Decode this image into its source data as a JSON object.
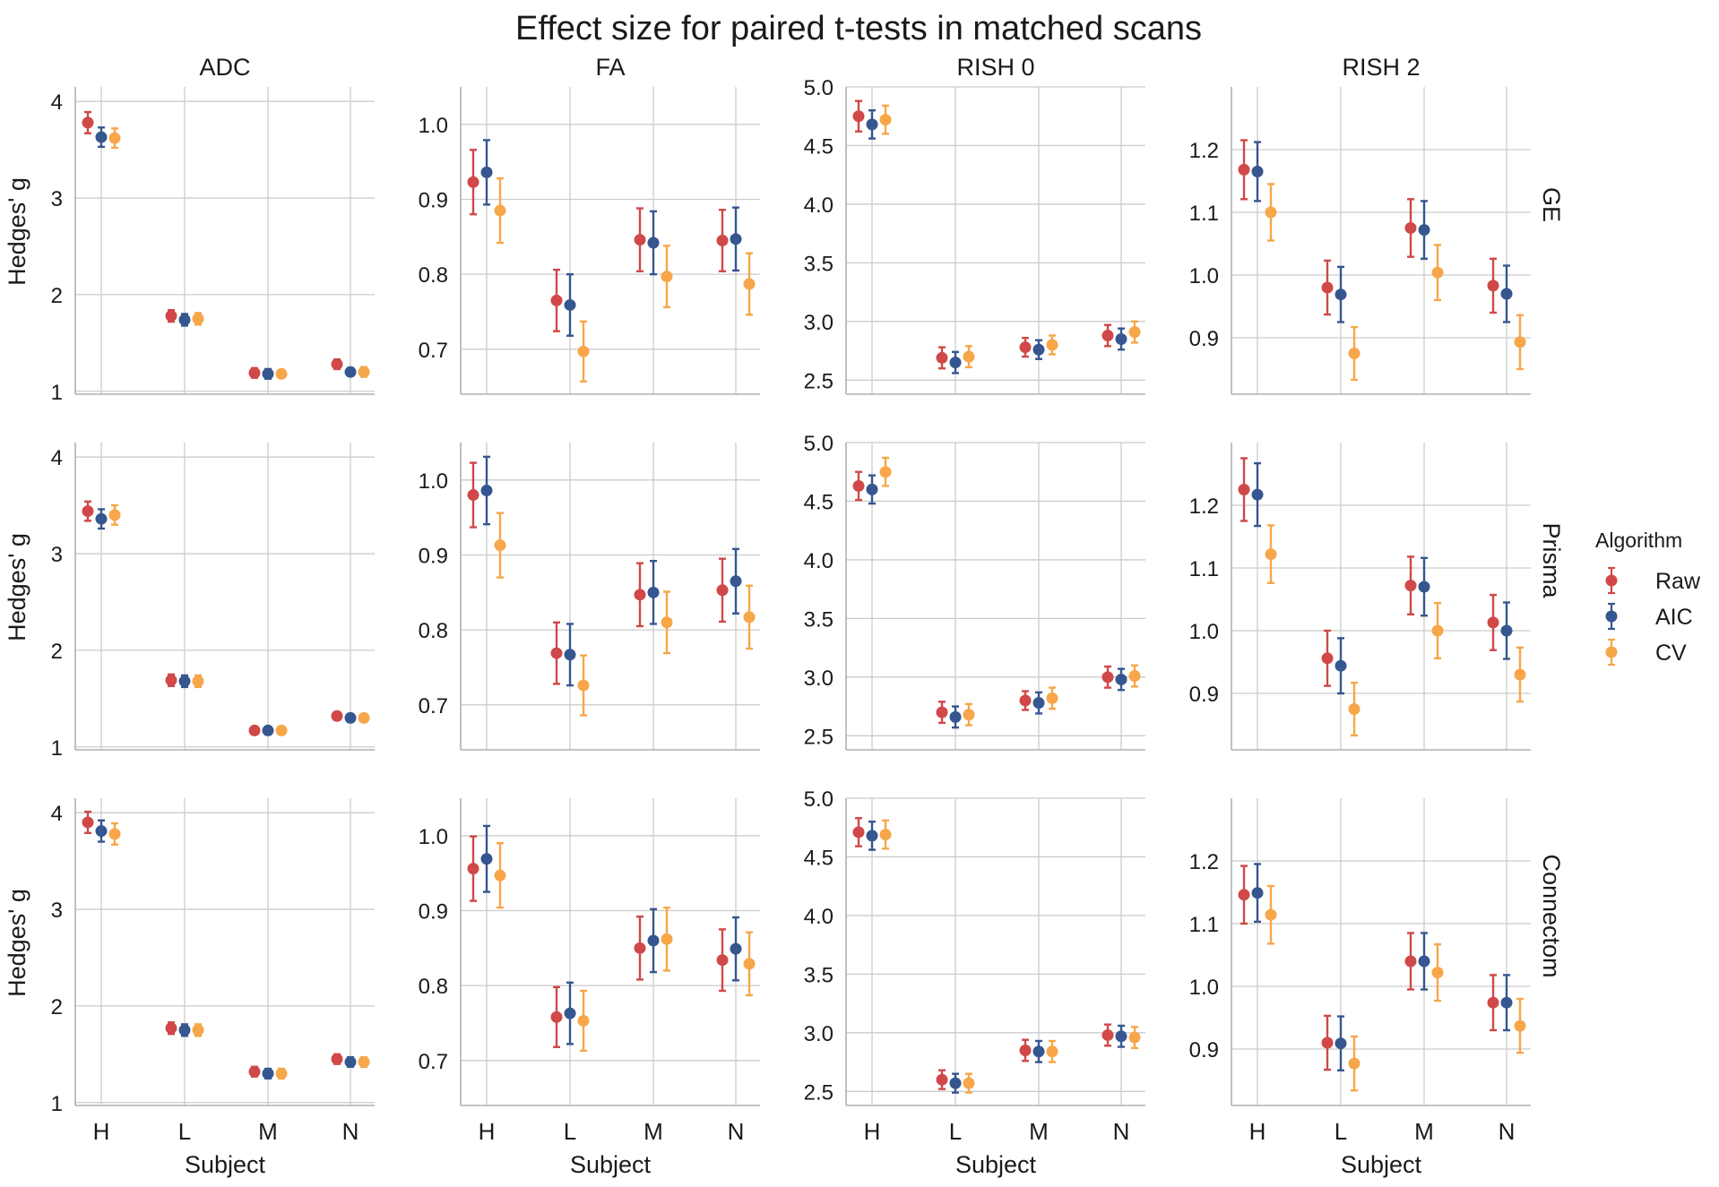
{
  "chart_data": {
    "type": "scatter",
    "variant": "point-estimate-with-error-bars (faceted grid)",
    "title": "Effect size for paired t-tests in matched scans",
    "col_facets": [
      "ADC",
      "FA",
      "RISH 0",
      "RISH 2"
    ],
    "row_facets": [
      "GE",
      "Prisma",
      "Connectom"
    ],
    "categories": [
      "H",
      "L",
      "M",
      "N"
    ],
    "xlabel": "Subject",
    "ylabel": "Hedges' g",
    "legend": {
      "title": "Algorithm",
      "position": "right",
      "entries": [
        {
          "name": "Raw",
          "color": "#d04848"
        },
        {
          "name": "AIC",
          "color": "#35568f"
        },
        {
          "name": "CV",
          "color": "#f7a649"
        }
      ]
    },
    "grid": true,
    "columns": [
      {
        "name": "ADC",
        "ylim": [
          0.97,
          4.15
        ],
        "ticks": [
          1,
          2,
          3,
          4
        ],
        "tick_labels": [
          "1",
          "2",
          "3",
          "4"
        ]
      },
      {
        "name": "FA",
        "ylim": [
          0.64,
          1.05
        ],
        "ticks": [
          0.7,
          0.8,
          0.9,
          1.0
        ],
        "tick_labels": [
          "0.7",
          "0.8",
          "0.9",
          "1.0"
        ]
      },
      {
        "name": "RISH 0",
        "ylim": [
          2.38,
          5.0
        ],
        "ticks": [
          2.5,
          3.0,
          3.5,
          4.0,
          4.5,
          5.0
        ],
        "tick_labels": [
          "2.5",
          "3.0",
          "3.5",
          "4.0",
          "4.5",
          "5.0"
        ]
      },
      {
        "name": "RISH 2",
        "ylim": [
          0.81,
          1.3
        ],
        "ticks": [
          0.9,
          1.0,
          1.1,
          1.2
        ],
        "tick_labels": [
          "0.9",
          "1.0",
          "1.1",
          "1.2"
        ]
      }
    ],
    "panels": [
      {
        "row": "GE",
        "col": "ADC",
        "series": [
          {
            "name": "Raw",
            "values": [
              3.78,
              1.78,
              1.19,
              1.28
            ],
            "err": [
              0.11,
              0.06,
              0.05,
              0.05
            ]
          },
          {
            "name": "AIC",
            "values": [
              3.63,
              1.74,
              1.18,
              1.2
            ],
            "err": [
              0.1,
              0.06,
              0.05,
              0.04
            ]
          },
          {
            "name": "CV",
            "values": [
              3.62,
              1.75,
              1.18,
              1.2
            ],
            "err": [
              0.1,
              0.06,
              0.04,
              0.05
            ]
          }
        ]
      },
      {
        "row": "GE",
        "col": "FA",
        "series": [
          {
            "name": "Raw",
            "values": [
              0.923,
              0.765,
              0.846,
              0.845
            ],
            "err": [
              0.043,
              0.041,
              0.042,
              0.041
            ]
          },
          {
            "name": "AIC",
            "values": [
              0.936,
              0.759,
              0.842,
              0.847
            ],
            "err": [
              0.043,
              0.041,
              0.042,
              0.042
            ]
          },
          {
            "name": "CV",
            "values": [
              0.885,
              0.697,
              0.797,
              0.787
            ],
            "err": [
              0.043,
              0.04,
              0.041,
              0.041
            ]
          }
        ]
      },
      {
        "row": "GE",
        "col": "RISH 0",
        "series": [
          {
            "name": "Raw",
            "values": [
              4.75,
              2.69,
              2.78,
              2.88
            ],
            "err": [
              0.13,
              0.09,
              0.08,
              0.09
            ]
          },
          {
            "name": "AIC",
            "values": [
              4.68,
              2.65,
              2.76,
              2.85
            ],
            "err": [
              0.12,
              0.09,
              0.08,
              0.09
            ]
          },
          {
            "name": "CV",
            "values": [
              4.72,
              2.7,
              2.8,
              2.91
            ],
            "err": [
              0.12,
              0.09,
              0.08,
              0.09
            ]
          }
        ]
      },
      {
        "row": "GE",
        "col": "RISH 2",
        "series": [
          {
            "name": "Raw",
            "values": [
              1.168,
              0.98,
              1.075,
              0.983
            ],
            "err": [
              0.047,
              0.043,
              0.046,
              0.043
            ]
          },
          {
            "name": "AIC",
            "values": [
              1.165,
              0.969,
              1.072,
              0.97
            ],
            "err": [
              0.047,
              0.044,
              0.046,
              0.045
            ]
          },
          {
            "name": "CV",
            "values": [
              1.1,
              0.875,
              1.004,
              0.893
            ],
            "err": [
              0.045,
              0.042,
              0.044,
              0.043
            ]
          }
        ]
      },
      {
        "row": "Prisma",
        "col": "ADC",
        "series": [
          {
            "name": "Raw",
            "values": [
              3.44,
              1.69,
              1.17,
              1.32
            ],
            "err": [
              0.1,
              0.06,
              0.04,
              0.04
            ]
          },
          {
            "name": "AIC",
            "values": [
              3.36,
              1.68,
              1.17,
              1.3
            ],
            "err": [
              0.1,
              0.06,
              0.04,
              0.04
            ]
          },
          {
            "name": "CV",
            "values": [
              3.4,
              1.68,
              1.17,
              1.3
            ],
            "err": [
              0.1,
              0.06,
              0.04,
              0.04
            ]
          }
        ]
      },
      {
        "row": "Prisma",
        "col": "FA",
        "series": [
          {
            "name": "Raw",
            "values": [
              0.98,
              0.769,
              0.847,
              0.853
            ],
            "err": [
              0.043,
              0.041,
              0.042,
              0.042
            ]
          },
          {
            "name": "AIC",
            "values": [
              0.986,
              0.767,
              0.85,
              0.865
            ],
            "err": [
              0.045,
              0.041,
              0.042,
              0.043
            ]
          },
          {
            "name": "CV",
            "values": [
              0.913,
              0.726,
              0.81,
              0.817
            ],
            "err": [
              0.043,
              0.04,
              0.041,
              0.042
            ]
          }
        ]
      },
      {
        "row": "Prisma",
        "col": "RISH 0",
        "series": [
          {
            "name": "Raw",
            "values": [
              4.63,
              2.7,
              2.8,
              3.0
            ],
            "err": [
              0.12,
              0.09,
              0.08,
              0.09
            ]
          },
          {
            "name": "AIC",
            "values": [
              4.6,
              2.66,
              2.78,
              2.98
            ],
            "err": [
              0.12,
              0.09,
              0.09,
              0.09
            ]
          },
          {
            "name": "CV",
            "values": [
              4.75,
              2.68,
              2.82,
              3.01
            ],
            "err": [
              0.12,
              0.09,
              0.09,
              0.09
            ]
          }
        ]
      },
      {
        "row": "Prisma",
        "col": "RISH 2",
        "series": [
          {
            "name": "Raw",
            "values": [
              1.225,
              0.956,
              1.072,
              1.013
            ],
            "err": [
              0.05,
              0.044,
              0.046,
              0.044
            ]
          },
          {
            "name": "AIC",
            "values": [
              1.217,
              0.944,
              1.07,
              1.0
            ],
            "err": [
              0.05,
              0.044,
              0.046,
              0.045
            ]
          },
          {
            "name": "CV",
            "values": [
              1.122,
              0.875,
              1.0,
              0.93
            ],
            "err": [
              0.046,
              0.042,
              0.044,
              0.043
            ]
          }
        ]
      },
      {
        "row": "Connectom",
        "col": "ADC",
        "series": [
          {
            "name": "Raw",
            "values": [
              3.9,
              1.77,
              1.32,
              1.45
            ],
            "err": [
              0.11,
              0.06,
              0.05,
              0.05
            ]
          },
          {
            "name": "AIC",
            "values": [
              3.81,
              1.75,
              1.3,
              1.42
            ],
            "err": [
              0.11,
              0.06,
              0.05,
              0.05
            ]
          },
          {
            "name": "CV",
            "values": [
              3.78,
              1.75,
              1.3,
              1.42
            ],
            "err": [
              0.11,
              0.06,
              0.05,
              0.05
            ]
          }
        ]
      },
      {
        "row": "Connectom",
        "col": "FA",
        "series": [
          {
            "name": "Raw",
            "values": [
              0.956,
              0.758,
              0.85,
              0.834
            ],
            "err": [
              0.043,
              0.04,
              0.042,
              0.041
            ]
          },
          {
            "name": "AIC",
            "values": [
              0.969,
              0.763,
              0.86,
              0.849
            ],
            "err": [
              0.044,
              0.041,
              0.042,
              0.042
            ]
          },
          {
            "name": "CV",
            "values": [
              0.947,
              0.753,
              0.862,
              0.829
            ],
            "err": [
              0.043,
              0.04,
              0.042,
              0.042
            ]
          }
        ]
      },
      {
        "row": "Connectom",
        "col": "RISH 0",
        "series": [
          {
            "name": "Raw",
            "values": [
              4.71,
              2.6,
              2.85,
              2.98
            ],
            "err": [
              0.12,
              0.08,
              0.09,
              0.09
            ]
          },
          {
            "name": "AIC",
            "values": [
              4.68,
              2.57,
              2.84,
              2.97
            ],
            "err": [
              0.12,
              0.08,
              0.09,
              0.09
            ]
          },
          {
            "name": "CV",
            "values": [
              4.69,
              2.57,
              2.84,
              2.96
            ],
            "err": [
              0.12,
              0.08,
              0.09,
              0.09
            ]
          }
        ]
      },
      {
        "row": "Connectom",
        "col": "RISH 2",
        "series": [
          {
            "name": "Raw",
            "values": [
              1.146,
              0.91,
              1.04,
              0.974
            ],
            "err": [
              0.046,
              0.043,
              0.045,
              0.044
            ]
          },
          {
            "name": "AIC",
            "values": [
              1.149,
              0.909,
              1.04,
              0.974
            ],
            "err": [
              0.046,
              0.043,
              0.045,
              0.044
            ]
          },
          {
            "name": "CV",
            "values": [
              1.114,
              0.877,
              1.022,
              0.937
            ],
            "err": [
              0.046,
              0.043,
              0.045,
              0.043
            ]
          }
        ]
      }
    ]
  }
}
